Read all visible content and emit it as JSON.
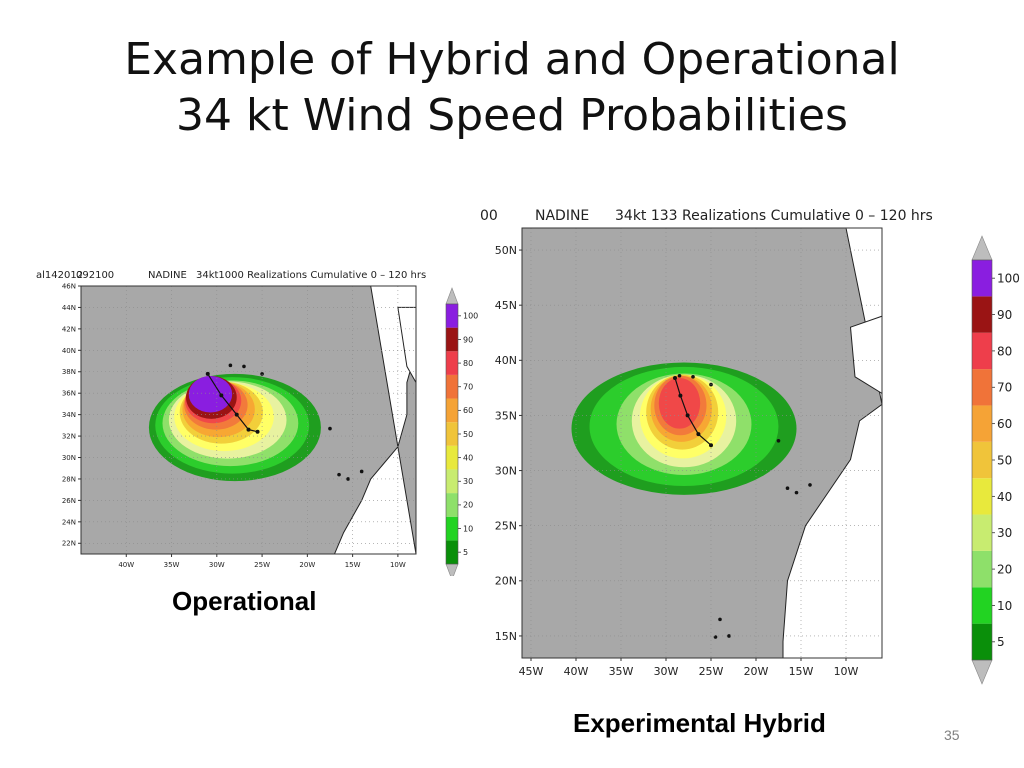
{
  "slide": {
    "title_line1": "Example of Hybrid and Operational",
    "title_line2": "34 kt Wind Speed Probabilities",
    "slide_number": "35"
  },
  "chart_data": [
    {
      "type": "heatmap",
      "caption": "Operational",
      "header": {
        "id": "al142012",
        "time": "092100",
        "storm": "NADINE",
        "desc": "34kt1000 Realizations Cumulative 0 – 120 hrs"
      },
      "lat_ticks": [
        "46N",
        "44N",
        "42N",
        "40N",
        "38N",
        "36N",
        "34N",
        "32N",
        "30N",
        "28N",
        "26N",
        "24N",
        "22N"
      ],
      "lon_ticks": [
        "40W",
        "35W",
        "30W",
        "25W",
        "20W",
        "15W",
        "10W"
      ],
      "xlim": [
        -45,
        -8
      ],
      "ylim": [
        21,
        46
      ],
      "colorbar": {
        "labels": [
          "5",
          "10",
          "20",
          "30",
          "40",
          "50",
          "60",
          "70",
          "80",
          "90",
          "100"
        ]
      },
      "contours": [
        {
          "level": 5,
          "lon": -28.0,
          "lat": 32.8,
          "rx": 9.5,
          "ry": 5.0
        },
        {
          "level": 10,
          "lon": -28.3,
          "lat": 33.0,
          "rx": 8.5,
          "ry": 4.5
        },
        {
          "level": 20,
          "lon": -28.5,
          "lat": 33.2,
          "rx": 7.5,
          "ry": 4.0
        },
        {
          "level": 30,
          "lon": -28.8,
          "lat": 33.5,
          "rx": 6.5,
          "ry": 3.6
        },
        {
          "level": 40,
          "lon": -29.2,
          "lat": 33.8,
          "rx": 5.5,
          "ry": 3.2
        },
        {
          "level": 50,
          "lon": -29.5,
          "lat": 34.2,
          "rx": 4.6,
          "ry": 2.9
        },
        {
          "level": 60,
          "lon": -29.8,
          "lat": 34.5,
          "rx": 4.0,
          "ry": 2.6
        },
        {
          "level": 70,
          "lon": -30.1,
          "lat": 34.9,
          "rx": 3.5,
          "ry": 2.3
        },
        {
          "level": 80,
          "lon": -30.4,
          "lat": 35.3,
          "rx": 3.1,
          "ry": 2.1
        },
        {
          "level": 90,
          "lon": -30.6,
          "lat": 35.6,
          "rx": 2.8,
          "ry": 2.0
        },
        {
          "level": 100,
          "lon": -30.7,
          "lat": 35.9,
          "rx": 2.4,
          "ry": 1.7
        }
      ],
      "track": [
        [
          -31.0,
          37.8
        ],
        [
          -29.5,
          35.8
        ],
        [
          -27.8,
          34.0
        ],
        [
          -26.5,
          32.6
        ],
        [
          -25.5,
          32.4
        ]
      ]
    },
    {
      "type": "heatmap",
      "caption": "Experimental Hybrid",
      "header": {
        "id": "00",
        "storm": "NADINE",
        "desc": "34kt 133 Realizations Cumulative 0 – 120 hrs"
      },
      "lat_ticks": [
        "50N",
        "45N",
        "40N",
        "35N",
        "30N",
        "25N",
        "20N",
        "15N"
      ],
      "lon_ticks": [
        "45W",
        "40W",
        "35W",
        "30W",
        "25W",
        "20W",
        "15W",
        "10W"
      ],
      "xlim": [
        -46,
        -6
      ],
      "ylim": [
        13,
        52
      ],
      "colorbar": {
        "labels": [
          "5",
          "10",
          "20",
          "30",
          "40",
          "50",
          "60",
          "70",
          "80",
          "90",
          "100"
        ]
      },
      "contours": [
        {
          "level": 5,
          "lon": -28.0,
          "lat": 33.8,
          "rx": 12.5,
          "ry": 6.0
        },
        {
          "level": 10,
          "lon": -28.0,
          "lat": 34.0,
          "rx": 10.5,
          "ry": 5.4
        },
        {
          "level": 20,
          "lon": -28.0,
          "lat": 34.2,
          "rx": 7.5,
          "ry": 4.6
        },
        {
          "level": 30,
          "lon": -28.0,
          "lat": 34.5,
          "rx": 5.8,
          "ry": 4.2
        },
        {
          "level": 40,
          "lon": -28.1,
          "lat": 34.9,
          "rx": 4.8,
          "ry": 3.8
        },
        {
          "level": 50,
          "lon": -28.2,
          "lat": 35.3,
          "rx": 4.0,
          "ry": 3.4
        },
        {
          "level": 60,
          "lon": -28.3,
          "lat": 35.6,
          "rx": 3.4,
          "ry": 3.0
        },
        {
          "level": 70,
          "lon": -28.4,
          "lat": 35.9,
          "rx": 2.9,
          "ry": 2.7
        },
        {
          "level": 80,
          "lon": -28.5,
          "lat": 36.1,
          "rx": 2.3,
          "ry": 2.3
        }
      ],
      "track": [
        [
          -29.0,
          38.4
        ],
        [
          -28.4,
          36.8
        ],
        [
          -27.6,
          35.0
        ],
        [
          -26.4,
          33.3
        ],
        [
          -25.0,
          32.3
        ]
      ]
    }
  ],
  "colors": {
    "ocean": "#a8a8a8",
    "land": "#ffffff",
    "coast": "#222222",
    "levels": {
      "5": "#1f9e1f",
      "10": "#2ccd2c",
      "20": "#8fe06a",
      "30": "#e8f2a0",
      "40": "#ffff66",
      "50": "#f2cf3a",
      "60": "#f7a733",
      "70": "#f27a3b",
      "80": "#f04848",
      "90": "#9a1414",
      "100": "#8a1ee0"
    },
    "colorbar": [
      "#0a8f0a",
      "#22d322",
      "#8ee06a",
      "#c8ec70",
      "#e8e93c",
      "#f0c43a",
      "#f5a336",
      "#f07339",
      "#ee3e4b",
      "#9a1414",
      "#8a1ee0"
    ]
  }
}
